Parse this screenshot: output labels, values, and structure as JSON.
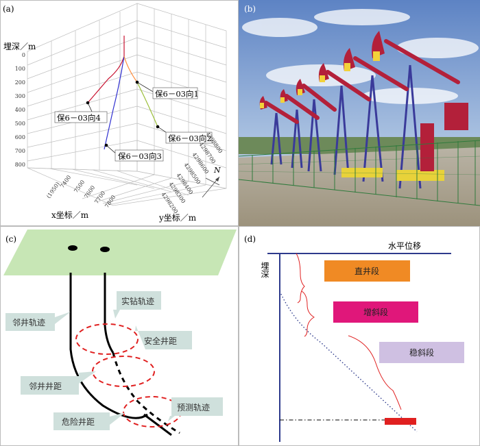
{
  "panels": {
    "a": {
      "label": "(a)",
      "z_axis_title": "埋深／m",
      "z_ticks": [
        "0",
        "100",
        "200",
        "300",
        "400",
        "500",
        "600",
        "700",
        "800"
      ],
      "x_axis_prefix": "(1950)",
      "x_ticks": [
        "7400",
        "7500",
        "7600",
        "7700",
        "7800"
      ],
      "x_axis_title": "x坐标／m",
      "y_ticks": [
        "4298800",
        "4298700",
        "4298600",
        "4298500",
        "4298400",
        "4298300",
        "4298200"
      ],
      "y_axis_title": "y坐标／m",
      "north": "N",
      "wells": [
        "保6－03向1",
        "保6－03向2",
        "保6－03向3",
        "保6－03向4"
      ],
      "colors": {
        "w1": "#ff8c3a",
        "w2": "#9bbf3a",
        "w3": "#2f2fd0",
        "w4": "#c8102e"
      }
    },
    "b": {
      "label": "(b)"
    },
    "c": {
      "label": "(c)",
      "callouts": [
        "实钻轨迹",
        "邻井轨迹",
        "安全井距",
        "邻井井距",
        "预测轨迹",
        "危险井距"
      ],
      "colors": {
        "plane": "#c7e6b5",
        "callout": "#cfe0dc",
        "dashed": "#e02020"
      }
    },
    "d": {
      "label": "(d)",
      "horizontal": "水平位移",
      "depth": "埋深",
      "segments": [
        {
          "label": "直井段",
          "color": "#f08a24"
        },
        {
          "label": "增斜段",
          "color": "#e0177a"
        },
        {
          "label": "稳斜段",
          "color": "#cfc0e2"
        }
      ],
      "colors": {
        "axis": "#2d3a8c",
        "brace": "#e02020",
        "marker": "#e02020"
      }
    }
  }
}
